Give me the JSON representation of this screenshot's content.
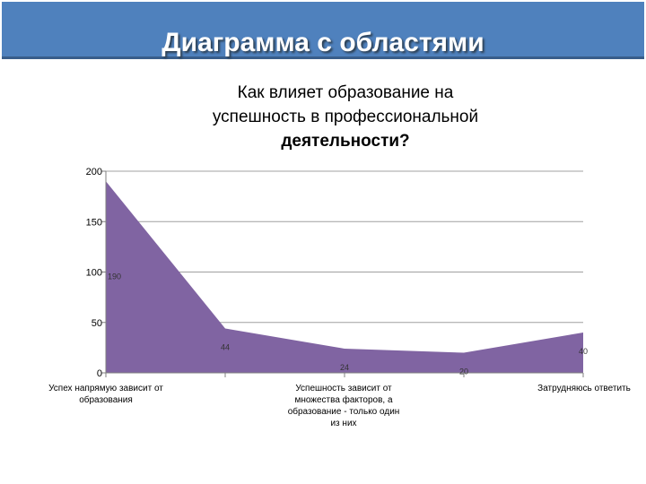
{
  "slide": {
    "title": "Диаграмма с областями"
  },
  "chart_data": {
    "type": "area",
    "title_lines": [
      "Как влияет образование на",
      "успешность в профессиональной",
      "деятельности?"
    ],
    "categories": [
      "Успех напрямую зависит от образования",
      "",
      "Успешность зависит от множества факторов, а образование - только один из них",
      "",
      "Затрудняюсь ответить"
    ],
    "values": [
      190,
      44,
      24,
      20,
      40
    ],
    "data_labels": [
      "190",
      "44",
      "24",
      "20",
      "40"
    ],
    "ylim": [
      0,
      200
    ],
    "yticks": [
      "0",
      "50",
      "100",
      "150",
      "200"
    ],
    "grid": true,
    "colors": {
      "area": "#8064a2",
      "grid": "#a0a0a0",
      "axis": "#808080"
    }
  }
}
